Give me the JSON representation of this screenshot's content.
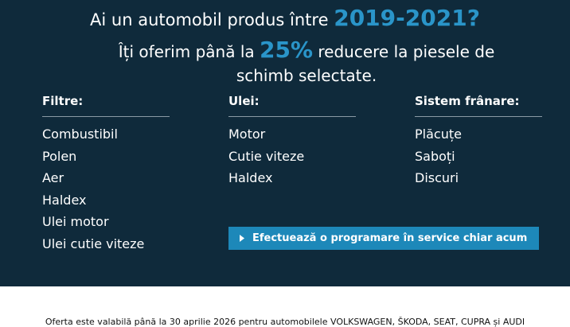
{
  "headline": {
    "prefix": "Ai un automobil produs între",
    "highlight": "2019-2021?"
  },
  "subheadline": {
    "prefix": "Îți oferim până la",
    "highlight": "25%",
    "suffix": "reducere la piesele de schimb selectate."
  },
  "columns": [
    {
      "title": "Filtre:",
      "items": [
        "Combustibil",
        "Polen",
        "Aer",
        "Haldex",
        "Ulei motor",
        "Ulei cutie viteze"
      ]
    },
    {
      "title": "Ulei:",
      "items": [
        "Motor",
        "Cutie viteze",
        "Haldex"
      ]
    },
    {
      "title": "Sistem frânare:",
      "items": [
        "Plăcuțe",
        "Saboți",
        "Discuri"
      ]
    }
  ],
  "cta": "Efectuează o programare în service chiar acum",
  "footer": "Oferta este valabilă până la 30 aprilie 2026 pentru automobilele VOLKSWAGEN, ŠKODA, SEAT, CUPRA și AUDI"
}
